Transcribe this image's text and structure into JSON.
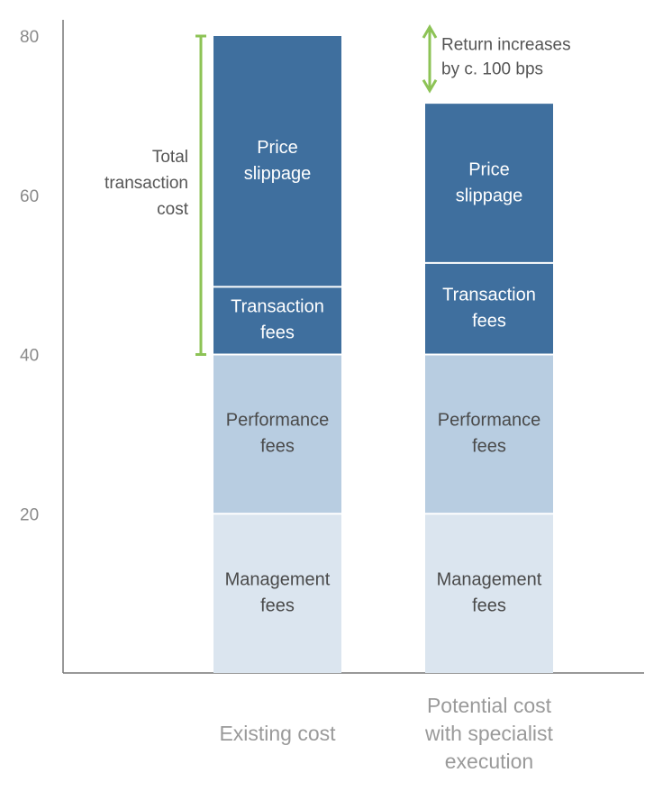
{
  "chart_data": {
    "type": "bar",
    "stacked": true,
    "categories": [
      "Existing cost",
      [
        "Potential cost",
        "with specialist",
        "execution"
      ]
    ],
    "ylim": [
      0,
      80
    ],
    "yticks": [
      20,
      40,
      60,
      80
    ],
    "grid": false,
    "series": [
      {
        "name": [
          "Management",
          "fees"
        ],
        "values": [
          20,
          20
        ],
        "color": "#dbe5ef",
        "text_color": "#4a4a4a"
      },
      {
        "name": [
          "Performance",
          "fees"
        ],
        "values": [
          20,
          20
        ],
        "color": "#b8cde1",
        "text_color": "#4a4a4a"
      },
      {
        "name": [
          "Transaction",
          "fees"
        ],
        "values": [
          8.5,
          11.5
        ],
        "color": "#3f6f9e",
        "text_color": "#ffffff"
      },
      {
        "name": [
          "Price",
          "slippage"
        ],
        "values": [
          31.5,
          20
        ],
        "color": "#3f6f9e",
        "text_color": "#ffffff"
      }
    ],
    "annotations": [
      {
        "text": [
          "Total",
          "transaction",
          "cost"
        ],
        "bar": 0,
        "from": 40,
        "to": 80,
        "color": "#8dc356"
      },
      {
        "text": [
          "Return increases",
          "by c. 100 bps"
        ],
        "bar": 1,
        "from": 72,
        "to": 80,
        "color": "#8dc356"
      }
    ]
  }
}
